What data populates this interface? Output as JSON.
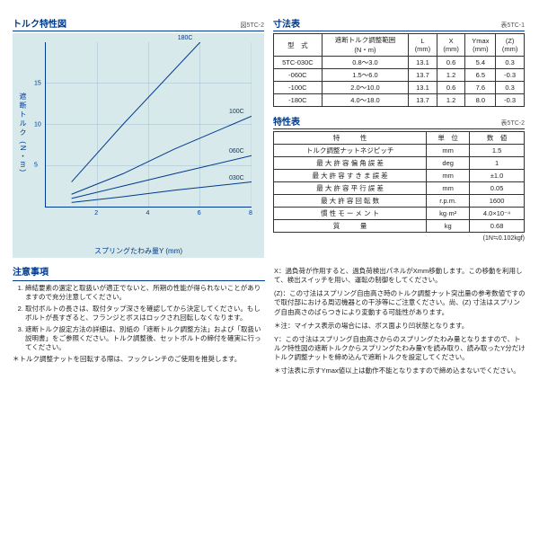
{
  "torque_chart": {
    "title": "トルク特性図",
    "subtitle": "図5TC-2",
    "xlabel": "スプリングたわみ量Y (mm)",
    "ylabel": "遮断トルク (N・m)",
    "xlim": [
      0,
      8
    ],
    "ylim": [
      0,
      20
    ],
    "xticks": [
      2,
      4,
      6,
      8
    ],
    "yticks": [
      5,
      10,
      15
    ],
    "background_color": "#d7e9ea",
    "axis_color": "#003a8c",
    "line_color": "#003a8c",
    "series": [
      {
        "name": "180C",
        "points": [
          [
            1,
            3
          ],
          [
            3,
            10
          ],
          [
            6,
            20
          ]
        ]
      },
      {
        "name": "100C",
        "points": [
          [
            1,
            1.5
          ],
          [
            3,
            4
          ],
          [
            5,
            7
          ],
          [
            8,
            11
          ]
        ]
      },
      {
        "name": "060C",
        "points": [
          [
            1,
            1
          ],
          [
            3,
            2.5
          ],
          [
            5,
            4
          ],
          [
            8,
            6.2
          ]
        ]
      },
      {
        "name": "030C",
        "points": [
          [
            1,
            0.5
          ],
          [
            3,
            1.2
          ],
          [
            5,
            2
          ],
          [
            8,
            3
          ]
        ]
      }
    ]
  },
  "dim_table": {
    "title": "寸法表",
    "subtitle": "表5TC-1",
    "headers": [
      "型　式",
      "遮断トルク調整範囲\n(N・m)",
      "L\n(mm)",
      "X\n(mm)",
      "Ymax\n(mm)",
      "(Z)\n(mm)"
    ],
    "rows": [
      [
        "5TC-030C",
        "0.8～3.0",
        "13.1",
        "0.6",
        "5.4",
        "0.3"
      ],
      [
        "-060C",
        "1.5～6.0",
        "13.7",
        "1.2",
        "6.5",
        "-0.3"
      ],
      [
        "-100C",
        "2.0～10.0",
        "13.1",
        "0.6",
        "7.6",
        "0.3"
      ],
      [
        "-180C",
        "4.0～18.0",
        "13.7",
        "1.2",
        "8.0",
        "-0.3"
      ]
    ]
  },
  "spec_table": {
    "title": "特性表",
    "subtitle": "表5TC-2",
    "headers": [
      "特　　　性",
      "単　位",
      "数　値"
    ],
    "rows": [
      [
        "トルク調整ナットネジピッチ",
        "mm",
        "1.5"
      ],
      [
        "最 大 許 容 偏 角 誤 差",
        "deg",
        "1"
      ],
      [
        "最 大 許 容 す き ま 誤 差",
        "mm",
        "±1.0"
      ],
      [
        "最 大 許 容 平 行 誤 差",
        "mm",
        "0.05"
      ],
      [
        "最 大 許 容 回 転 数",
        "r.p.m.",
        "1600"
      ],
      [
        "慣 性 モ ー メ ン ト",
        "kg·m²",
        "4.0×10⁻⁴"
      ],
      [
        "質　　　量",
        "kg",
        "0.68"
      ]
    ],
    "footnote": "(1N≒0.102kgf)"
  },
  "cautions": {
    "title": "注意事項",
    "items": [
      "締結要素の選定と取扱いが適正でないと、所期の性能が得られないことがありますので充分注意してください。",
      "取付ボルトの長さは、取付タップ深さを確認してから決定してください。もしボルトが長すぎると、フランジとボスはロックされ回転しなくなります。",
      "遮断トルク設定方法の詳細は、別紙の「遮断トルク調整方法」および「取扱い説明書」をご参照ください。トルク調整後、セットボルトの締付を確実に行ってください。"
    ],
    "star": "＊トルク調整ナットを回転する際は、フックレンチのご使用を推奨します。"
  },
  "right_notes": {
    "x_note": "X：過負荷が作用すると、過負荷検出パネルがXmm移動します。この移動を利用して、検出スイッチを用い、運転の制御をしてください。",
    "z_note": "(Z)：この寸法はスプリング自由高さ時のトルク調整ナット突出量の参考数値ですので取付部における周辺機器との干渉等にご注意ください。尚、(Z) 寸法はスプリング自由高さのばらつきにより変動する可能性があります。",
    "z_star": "＊注：マイナス表示の場合には、ボス面より凹状態となります。",
    "y_note": "Y：この寸法はスプリング自由高さからのスプリングたわみ量となりますので、トルク特性図の遮断トルクからスプリングたわみ量Yを読み取り、読み取ったY分だけトルク調整ナットを締め込んで遮断トルクを設定してください。",
    "y_star": "＊寸法表に示すYmax値以上は動作不能となりますので締め込まないでください。"
  }
}
